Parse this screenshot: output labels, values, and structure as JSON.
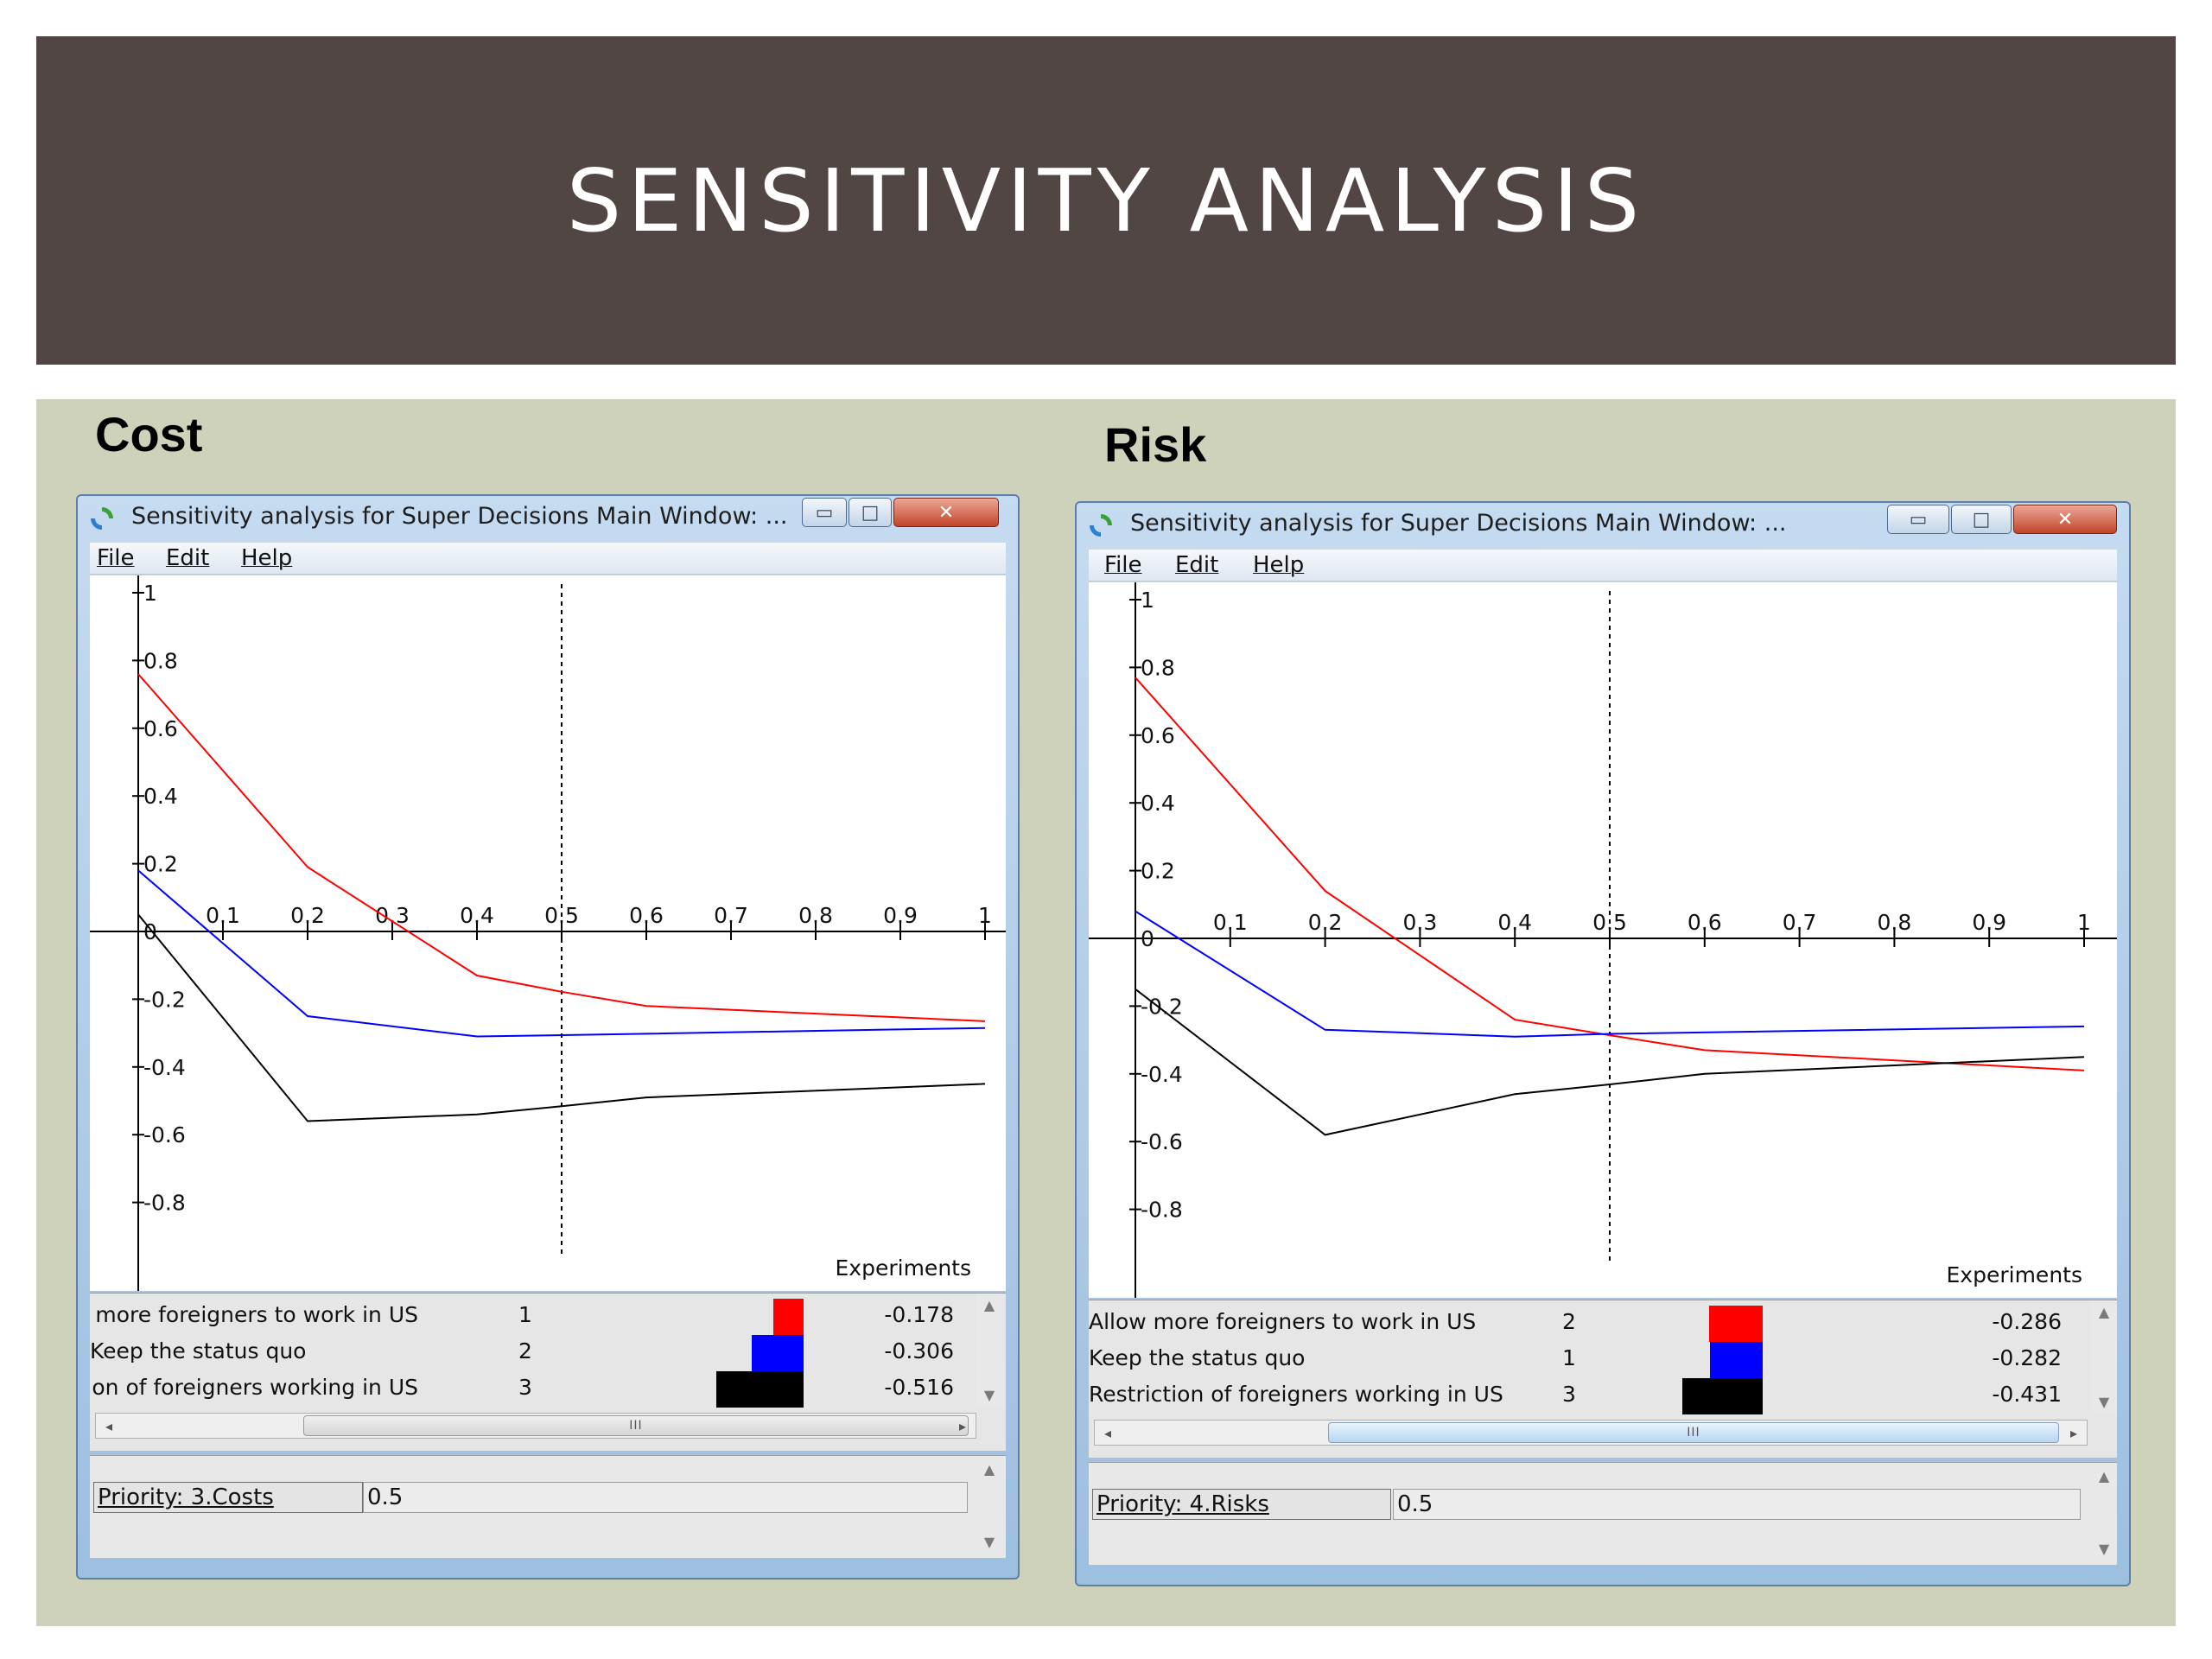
{
  "slide": {
    "title": "SENSITIVITY ANALYSIS"
  },
  "panels": [
    {
      "heading": "Cost",
      "window_title": "Sensitivity analysis for Super Decisions Main Window: ...",
      "menu": [
        "File",
        "Edit",
        "Help"
      ],
      "chart_data": {
        "type": "line",
        "xlabel": "Experiments",
        "xlim": [
          0,
          1
        ],
        "ylim": [
          -1,
          1
        ],
        "x_ticks": [
          "0.1",
          "0.2",
          "0.3",
          "0.4",
          "0.5",
          "0.6",
          "0.7",
          "0.8",
          "0.9",
          "1"
        ],
        "y_ticks": [
          "1",
          "0.8",
          "0.6",
          "0.4",
          "0.2",
          "0",
          "-0.2",
          "-0.4",
          "-0.6",
          "-0.8"
        ],
        "marker_x": 0.5,
        "series": [
          {
            "color": "#ff0000",
            "x": [
              0,
              0.2,
              0.4,
              0.5,
              0.6,
              1
            ],
            "y": [
              0.76,
              0.19,
              -0.13,
              -0.178,
              -0.22,
              -0.265
            ]
          },
          {
            "color": "#0000ff",
            "x": [
              0,
              0.2,
              0.4,
              0.5,
              1
            ],
            "y": [
              0.18,
              -0.25,
              -0.31,
              -0.306,
              -0.285
            ]
          },
          {
            "color": "#000000",
            "x": [
              0,
              0.2,
              0.4,
              0.5,
              0.6,
              1
            ],
            "y": [
              0.05,
              -0.56,
              -0.54,
              -0.516,
              -0.49,
              -0.45
            ]
          }
        ]
      },
      "legend": [
        {
          "name": "Allow more foreigners to work in US",
          "rank": "1",
          "color": "#ff0000",
          "value": "-0.178",
          "bar_value": 0.178
        },
        {
          "name": "Keep the status quo",
          "rank": "2",
          "color": "#0000ff",
          "value": "-0.306",
          "bar_value": 0.306
        },
        {
          "name": "Restriction of foreigners working in US",
          "rank": "3",
          "color": "#000000",
          "value": "-0.516",
          "bar_value": 0.516
        }
      ],
      "priority_label": "Priority: 3.Costs",
      "priority_value": "0.5"
    },
    {
      "heading": "Risk",
      "window_title": "Sensitivity analysis for Super Decisions Main Window: ...",
      "menu": [
        "File",
        "Edit",
        "Help"
      ],
      "chart_data": {
        "type": "line",
        "xlabel": "Experiments",
        "xlim": [
          0,
          1
        ],
        "ylim": [
          -1,
          1
        ],
        "x_ticks": [
          "0.1",
          "0.2",
          "0.3",
          "0.4",
          "0.5",
          "0.6",
          "0.7",
          "0.8",
          "0.9",
          "1"
        ],
        "y_ticks": [
          "1",
          "0.8",
          "0.6",
          "0.4",
          "0.2",
          "0",
          "-0.2",
          "-0.4",
          "-0.6",
          "-0.8"
        ],
        "marker_x": 0.5,
        "series": [
          {
            "color": "#ff0000",
            "x": [
              0,
              0.2,
              0.4,
              0.5,
              0.6,
              1
            ],
            "y": [
              0.77,
              0.14,
              -0.24,
              -0.286,
              -0.33,
              -0.39
            ]
          },
          {
            "color": "#0000ff",
            "x": [
              0,
              0.2,
              0.4,
              0.5,
              1
            ],
            "y": [
              0.08,
              -0.27,
              -0.29,
              -0.282,
              -0.26
            ]
          },
          {
            "color": "#000000",
            "x": [
              0,
              0.2,
              0.4,
              0.5,
              0.6,
              1
            ],
            "y": [
              -0.15,
              -0.58,
              -0.46,
              -0.431,
              -0.4,
              -0.35
            ]
          }
        ]
      },
      "legend": [
        {
          "name": "Allow more foreigners to work in US",
          "rank": "2",
          "color": "#ff0000",
          "value": "-0.286",
          "bar_value": 0.286
        },
        {
          "name": "Keep the status quo",
          "rank": "1",
          "color": "#0000ff",
          "value": "-0.282",
          "bar_value": 0.282
        },
        {
          "name": "Restriction of foreigners working in US",
          "rank": "3",
          "color": "#000000",
          "value": "-0.431",
          "bar_value": 0.431
        }
      ],
      "priority_label": "Priority: 4.Risks",
      "priority_value": "0.5"
    }
  ]
}
